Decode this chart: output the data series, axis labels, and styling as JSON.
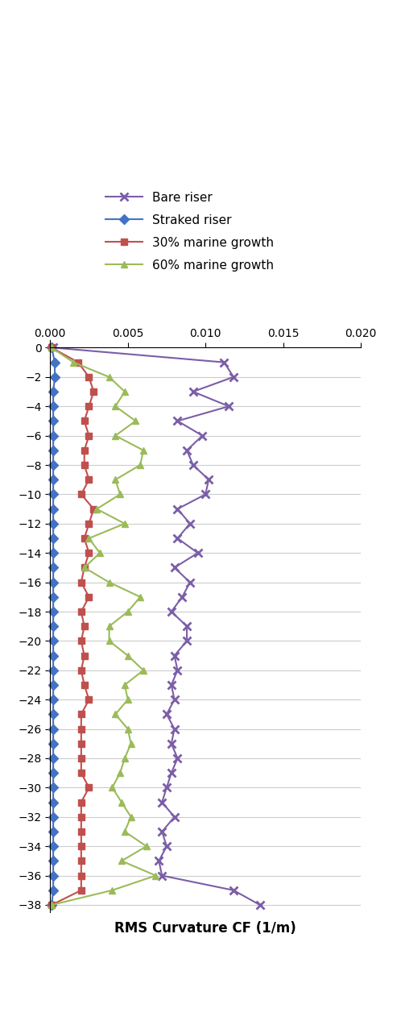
{
  "xlabel": "RMS Curvature CF (1/m)",
  "xlim": [
    0.0,
    0.02
  ],
  "ylim": [
    -38.5,
    0.5
  ],
  "yticks": [
    0,
    -2,
    -4,
    -6,
    -8,
    -10,
    -12,
    -14,
    -16,
    -18,
    -20,
    -22,
    -24,
    -26,
    -28,
    -30,
    -32,
    -34,
    -36,
    -38
  ],
  "xticks": [
    0.0,
    0.005,
    0.01,
    0.015,
    0.02
  ],
  "bare_riser": {
    "label": "Bare riser",
    "color": "#7b5ea7",
    "marker": "x",
    "y": [
      0,
      -1,
      -2,
      -3,
      -4,
      -5,
      -6,
      -7,
      -8,
      -9,
      -10,
      -11,
      -12,
      -13,
      -14,
      -15,
      -16,
      -17,
      -18,
      -19,
      -20,
      -21,
      -22,
      -23,
      -24,
      -25,
      -26,
      -27,
      -28,
      -29,
      -30,
      -31,
      -32,
      -33,
      -34,
      -35,
      -36,
      -37,
      -38
    ],
    "x": [
      0.0002,
      0.0112,
      0.0118,
      0.0092,
      0.0115,
      0.0082,
      0.0098,
      0.0088,
      0.0092,
      0.0102,
      0.01,
      0.0082,
      0.009,
      0.0082,
      0.0095,
      0.008,
      0.009,
      0.0085,
      0.0078,
      0.0088,
      0.0088,
      0.008,
      0.0082,
      0.0078,
      0.008,
      0.0075,
      0.008,
      0.0078,
      0.0082,
      0.0078,
      0.0075,
      0.0072,
      0.008,
      0.0072,
      0.0075,
      0.007,
      0.0072,
      0.0118,
      0.0135
    ]
  },
  "straked_riser": {
    "label": "Straked riser",
    "color": "#4472c4",
    "marker": "D",
    "y": [
      0,
      -1,
      -2,
      -3,
      -4,
      -5,
      -6,
      -7,
      -8,
      -9,
      -10,
      -11,
      -12,
      -13,
      -14,
      -15,
      -16,
      -17,
      -18,
      -19,
      -20,
      -21,
      -22,
      -23,
      -24,
      -25,
      -26,
      -27,
      -28,
      -29,
      -30,
      -31,
      -32,
      -33,
      -34,
      -35,
      -36,
      -37,
      -38
    ],
    "x": [
      0.0001,
      0.0003,
      0.0003,
      0.0002,
      0.0002,
      0.0002,
      0.0002,
      0.0002,
      0.0002,
      0.0002,
      0.0002,
      0.0002,
      0.0002,
      0.0002,
      0.0002,
      0.0002,
      0.0002,
      0.0002,
      0.0002,
      0.0002,
      0.0002,
      0.0002,
      0.0002,
      0.0002,
      0.0002,
      0.0002,
      0.0002,
      0.0002,
      0.0002,
      0.0002,
      0.0002,
      0.0002,
      0.0002,
      0.0002,
      0.0002,
      0.0002,
      0.0002,
      0.0002,
      0.0001
    ]
  },
  "marine_30": {
    "label": "30% marine growth",
    "color": "#c0504d",
    "marker": "s",
    "y": [
      0,
      -1,
      -2,
      -3,
      -4,
      -5,
      -6,
      -7,
      -8,
      -9,
      -10,
      -11,
      -12,
      -13,
      -14,
      -15,
      -16,
      -17,
      -18,
      -19,
      -20,
      -21,
      -22,
      -23,
      -24,
      -25,
      -26,
      -27,
      -28,
      -29,
      -30,
      -31,
      -32,
      -33,
      -34,
      -35,
      -36,
      -37,
      -38
    ],
    "x": [
      0.0001,
      0.0018,
      0.0025,
      0.0028,
      0.0025,
      0.0022,
      0.0025,
      0.0022,
      0.0022,
      0.0025,
      0.002,
      0.0028,
      0.0025,
      0.0022,
      0.0025,
      0.0022,
      0.002,
      0.0025,
      0.002,
      0.0022,
      0.002,
      0.0022,
      0.002,
      0.0022,
      0.0025,
      0.002,
      0.002,
      0.002,
      0.002,
      0.002,
      0.0025,
      0.002,
      0.002,
      0.002,
      0.002,
      0.002,
      0.002,
      0.002,
      0.0001
    ]
  },
  "marine_60": {
    "label": "60% marine growth",
    "color": "#9bbb59",
    "marker": "^",
    "y": [
      0,
      -1,
      -2,
      -3,
      -4,
      -5,
      -6,
      -7,
      -8,
      -9,
      -10,
      -11,
      -12,
      -13,
      -14,
      -15,
      -16,
      -17,
      -18,
      -19,
      -20,
      -21,
      -22,
      -23,
      -24,
      -25,
      -26,
      -27,
      -28,
      -29,
      -30,
      -31,
      -32,
      -33,
      -34,
      -35,
      -36,
      -37,
      -38
    ],
    "x": [
      0.0001,
      0.0015,
      0.0038,
      0.0048,
      0.0042,
      0.0055,
      0.0042,
      0.006,
      0.0058,
      0.0042,
      0.0045,
      0.003,
      0.0048,
      0.0025,
      0.0032,
      0.0022,
      0.0038,
      0.0058,
      0.005,
      0.0038,
      0.0038,
      0.005,
      0.006,
      0.0048,
      0.005,
      0.0042,
      0.005,
      0.0052,
      0.0048,
      0.0045,
      0.004,
      0.0046,
      0.0052,
      0.0048,
      0.0062,
      0.0046,
      0.0068,
      0.004,
      0.0001
    ]
  },
  "legend_fontsize": 11,
  "xlabel_fontsize": 12,
  "tick_fontsize": 10,
  "figsize": [
    4.98,
    12.72
  ],
  "dpi": 100
}
